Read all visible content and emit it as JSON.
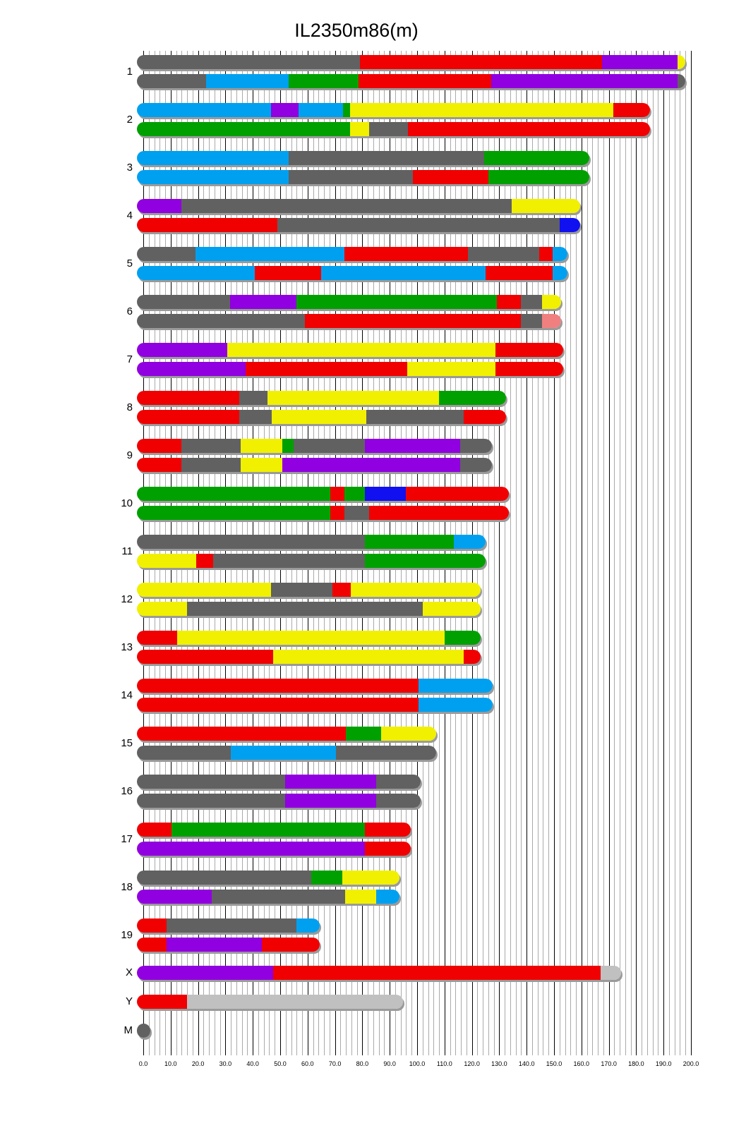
{
  "chart_data": {
    "type": "chromosome-painting",
    "title": "IL2350m86(m)",
    "xlabel": "",
    "ylabel": "",
    "xlim": [
      0,
      200
    ],
    "x_ticks": [
      "0.0",
      "10.0",
      "20.0",
      "30.0",
      "40.0",
      "50.0",
      "60.0",
      "70.0",
      "80.0",
      "90.0",
      "100.0",
      "110.0",
      "120.0",
      "130.0",
      "140.0",
      "150.0",
      "160.0",
      "170.0",
      "180.0",
      "190.0",
      "200.0"
    ],
    "grid": true,
    "colors": {
      "gray": "#616161",
      "red": "#f00000",
      "purple": "#9000e0",
      "yellow": "#f0f000",
      "blue": "#00a0f0",
      "green": "#00a000",
      "navy": "#1010f0",
      "salmon": "#f08080",
      "lightgray": "#c0c0c0"
    },
    "chromosomes": [
      {
        "name": "1",
        "haplotypes": [
          [
            [
              79,
              "gray"
            ],
            [
              167.5,
              "red"
            ],
            [
              195,
              "purple"
            ],
            [
              198,
              "yellow"
            ]
          ],
          [
            [
              23,
              "gray"
            ],
            [
              53,
              "blue"
            ],
            [
              78.6,
              "green"
            ],
            [
              127,
              "red"
            ],
            [
              195,
              "purple"
            ],
            [
              198,
              "gray"
            ]
          ]
        ]
      },
      {
        "name": "2",
        "haplotypes": [
          [
            [
              46.6,
              "blue"
            ],
            [
              56.7,
              "purple"
            ],
            [
              73,
              "blue"
            ],
            [
              75.5,
              "green"
            ],
            [
              171.6,
              "yellow"
            ],
            [
              185,
              "red"
            ]
          ],
          [
            [
              75.5,
              "green"
            ],
            [
              82.5,
              "yellow"
            ],
            [
              96.6,
              "gray"
            ],
            [
              185,
              "red"
            ]
          ]
        ]
      },
      {
        "name": "3",
        "haplotypes": [
          [
            [
              53,
              "blue"
            ],
            [
              124.5,
              "gray"
            ],
            [
              163,
              "green"
            ]
          ],
          [
            [
              53,
              "blue"
            ],
            [
              98.5,
              "gray"
            ],
            [
              126,
              "red"
            ],
            [
              163,
              "green"
            ]
          ]
        ]
      },
      {
        "name": "4",
        "haplotypes": [
          [
            [
              14,
              "purple"
            ],
            [
              134.5,
              "gray"
            ],
            [
              159.5,
              "yellow"
            ]
          ],
          [
            [
              49,
              "red"
            ],
            [
              152,
              "gray"
            ],
            [
              159.5,
              "navy"
            ]
          ]
        ]
      },
      {
        "name": "5",
        "haplotypes": [
          [
            [
              19,
              "gray"
            ],
            [
              73.5,
              "blue"
            ],
            [
              118.5,
              "red"
            ],
            [
              144.6,
              "gray"
            ],
            [
              149.5,
              "red"
            ],
            [
              155,
              "blue"
            ]
          ],
          [
            [
              40.7,
              "blue"
            ],
            [
              65,
              "red"
            ],
            [
              125,
              "blue"
            ],
            [
              149.5,
              "red"
            ],
            [
              155,
              "blue"
            ]
          ]
        ]
      },
      {
        "name": "6",
        "haplotypes": [
          [
            [
              31.7,
              "gray"
            ],
            [
              56,
              "purple"
            ],
            [
              129,
              "green"
            ],
            [
              138,
              "red"
            ],
            [
              145.6,
              "gray"
            ],
            [
              152.5,
              "yellow"
            ]
          ],
          [
            [
              59,
              "gray"
            ],
            [
              138,
              "red"
            ],
            [
              145.6,
              "gray"
            ],
            [
              152.5,
              "salmon"
            ]
          ]
        ]
      },
      {
        "name": "7",
        "haplotypes": [
          [
            [
              30.7,
              "purple"
            ],
            [
              128.6,
              "yellow"
            ],
            [
              153.3,
              "red"
            ]
          ],
          [
            [
              37.4,
              "purple"
            ],
            [
              96.4,
              "red"
            ],
            [
              128.6,
              "yellow"
            ],
            [
              153.3,
              "red"
            ]
          ]
        ]
      },
      {
        "name": "8",
        "haplotypes": [
          [
            [
              35,
              "red"
            ],
            [
              45.4,
              "gray"
            ],
            [
              108,
              "yellow"
            ],
            [
              132.5,
              "green"
            ]
          ],
          [
            [
              35,
              "red"
            ],
            [
              47,
              "gray"
            ],
            [
              81.4,
              "yellow"
            ],
            [
              117,
              "gray"
            ],
            [
              132.5,
              "red"
            ]
          ]
        ]
      },
      {
        "name": "9",
        "haplotypes": [
          [
            [
              14,
              "red"
            ],
            [
              35.6,
              "gray"
            ],
            [
              50.8,
              "yellow"
            ],
            [
              55,
              "green"
            ],
            [
              81,
              "gray"
            ],
            [
              115.7,
              "purple"
            ],
            [
              127.3,
              "gray"
            ]
          ],
          [
            [
              14,
              "red"
            ],
            [
              35.6,
              "gray"
            ],
            [
              50.8,
              "yellow"
            ],
            [
              115.7,
              "purple"
            ],
            [
              127.3,
              "gray"
            ]
          ]
        ]
      },
      {
        "name": "10",
        "haplotypes": [
          [
            [
              68.3,
              "green"
            ],
            [
              73.5,
              "red"
            ],
            [
              81,
              "green"
            ],
            [
              96,
              "navy"
            ],
            [
              133.5,
              "red"
            ]
          ],
          [
            [
              68.3,
              "green"
            ],
            [
              73.5,
              "red"
            ],
            [
              82.5,
              "gray"
            ],
            [
              133.5,
              "red"
            ]
          ]
        ]
      },
      {
        "name": "11",
        "haplotypes": [
          [
            [
              81,
              "gray"
            ],
            [
              113.4,
              "green"
            ],
            [
              125,
              "blue"
            ]
          ],
          [
            [
              19.3,
              "yellow"
            ],
            [
              25.5,
              "red"
            ],
            [
              81,
              "gray"
            ],
            [
              125,
              "green"
            ]
          ]
        ]
      },
      {
        "name": "12",
        "haplotypes": [
          [
            [
              46.6,
              "yellow"
            ],
            [
              69,
              "gray"
            ],
            [
              75.8,
              "red"
            ],
            [
              123.2,
              "yellow"
            ]
          ],
          [
            [
              16,
              "yellow"
            ],
            [
              102,
              "gray"
            ],
            [
              123.2,
              "yellow"
            ]
          ]
        ]
      },
      {
        "name": "13",
        "haplotypes": [
          [
            [
              12.4,
              "red"
            ],
            [
              110,
              "yellow"
            ],
            [
              123.2,
              "green"
            ]
          ],
          [
            [
              47.4,
              "red"
            ],
            [
              117,
              "yellow"
            ],
            [
              123.2,
              "red"
            ]
          ]
        ]
      },
      {
        "name": "14",
        "haplotypes": [
          [
            [
              100.5,
              "red"
            ],
            [
              127.6,
              "blue"
            ]
          ],
          [
            [
              100.5,
              "red"
            ],
            [
              127.6,
              "blue"
            ]
          ]
        ]
      },
      {
        "name": "15",
        "haplotypes": [
          [
            [
              74,
              "red"
            ],
            [
              86.9,
              "green"
            ],
            [
              107,
              "yellow"
            ]
          ],
          [
            [
              32,
              "gray"
            ],
            [
              70.4,
              "blue"
            ],
            [
              107,
              "gray"
            ]
          ]
        ]
      },
      {
        "name": "16",
        "haplotypes": [
          [
            [
              51.8,
              "gray"
            ],
            [
              85,
              "purple"
            ],
            [
              101.3,
              "gray"
            ]
          ],
          [
            [
              51.8,
              "gray"
            ],
            [
              85,
              "purple"
            ],
            [
              101.3,
              "gray"
            ]
          ]
        ]
      },
      {
        "name": "17",
        "haplotypes": [
          [
            [
              10.3,
              "red"
            ],
            [
              81,
              "green"
            ],
            [
              97.7,
              "red"
            ]
          ],
          [
            [
              81,
              "purple"
            ],
            [
              97.7,
              "red"
            ]
          ]
        ]
      },
      {
        "name": "18",
        "haplotypes": [
          [
            [
              61.3,
              "gray"
            ],
            [
              72.7,
              "green"
            ],
            [
              93.6,
              "yellow"
            ]
          ],
          [
            [
              25,
              "purple"
            ],
            [
              73.7,
              "gray"
            ],
            [
              85,
              "yellow"
            ],
            [
              93.6,
              "blue"
            ]
          ]
        ]
      },
      {
        "name": "19",
        "haplotypes": [
          [
            [
              8.5,
              "red"
            ],
            [
              56,
              "gray"
            ],
            [
              64.4,
              "blue"
            ]
          ],
          [
            [
              8.5,
              "red"
            ],
            [
              43.3,
              "purple"
            ],
            [
              64.4,
              "red"
            ]
          ]
        ]
      },
      {
        "name": "X",
        "haplotypes": [
          [
            [
              47.4,
              "purple"
            ],
            [
              167,
              "red"
            ],
            [
              174.5,
              "lightgray"
            ]
          ]
        ]
      },
      {
        "name": "Y",
        "haplotypes": [
          [
            [
              16,
              "red"
            ],
            [
              94.8,
              "lightgray"
            ]
          ]
        ]
      },
      {
        "name": "M",
        "haplotypes": [
          [
            [
              2.5,
              "gray"
            ]
          ]
        ]
      }
    ]
  }
}
